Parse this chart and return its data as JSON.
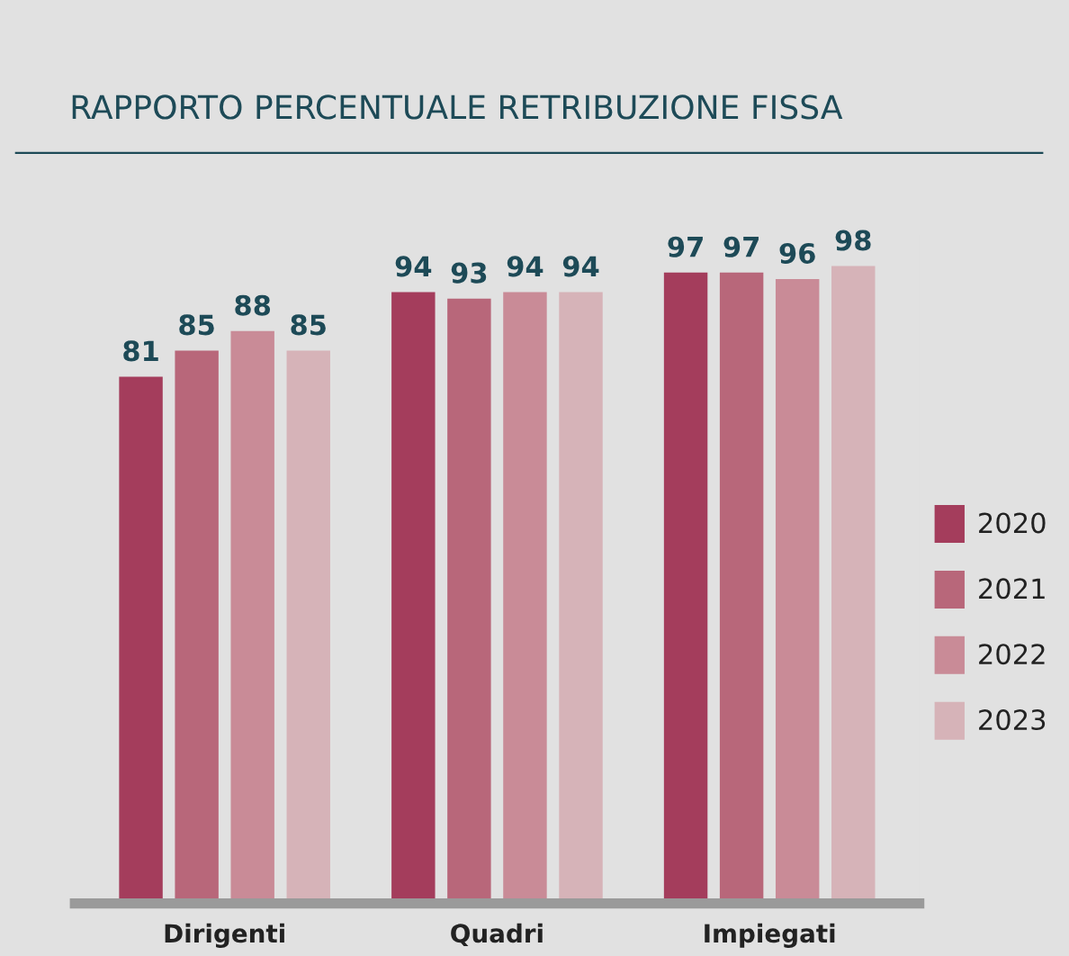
{
  "chart_data": {
    "type": "bar",
    "title": "RAPPORTO PERCENTUALE RETRIBUZIONE FISSA",
    "categories": [
      "Dirigenti",
      "Quadri",
      "Impiegati"
    ],
    "series": [
      {
        "name": "2020",
        "color": "#a43d5c",
        "values": [
          81,
          94,
          97
        ]
      },
      {
        "name": "2021",
        "color": "#b8677a",
        "values": [
          85,
          93,
          97
        ]
      },
      {
        "name": "2022",
        "color": "#c98b97",
        "values": [
          88,
          94,
          96
        ]
      },
      {
        "name": "2023",
        "color": "#d6b3b8",
        "values": [
          85,
          94,
          98
        ]
      }
    ],
    "data_labels": true,
    "legend": "right",
    "grid": false
  }
}
